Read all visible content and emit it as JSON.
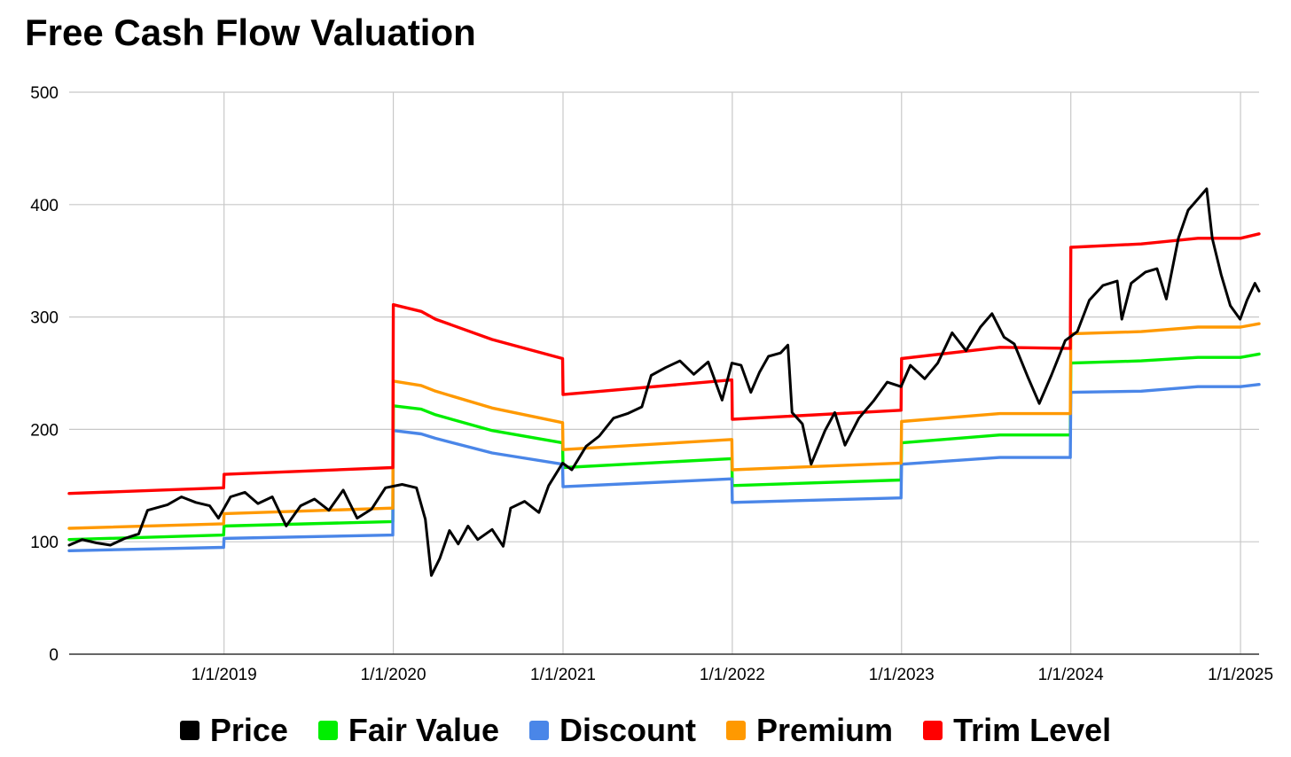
{
  "chart_data": {
    "type": "line",
    "title": "Free Cash Flow Valuation",
    "xlabel": "",
    "ylabel": "",
    "ylim": [
      0,
      500
    ],
    "y_ticks": [
      0,
      100,
      200,
      300,
      400,
      500
    ],
    "xlim": [
      "2018-02-01",
      "2025-02-10"
    ],
    "x_ticks": [
      "2019-01-01",
      "2020-01-01",
      "2021-01-01",
      "2022-01-01",
      "2023-01-01",
      "2024-01-01",
      "2025-01-01"
    ],
    "x_tick_labels": [
      "1/1/2019",
      "1/1/2020",
      "1/1/2021",
      "1/1/2022",
      "1/1/2023",
      "1/1/2024",
      "1/1/2025"
    ],
    "grid": true,
    "legend_position": "bottom",
    "series": [
      {
        "name": "Price",
        "color": "#000000",
        "points": [
          [
            "2018-02-01",
            97
          ],
          [
            "2018-03-01",
            102
          ],
          [
            "2018-04-01",
            99
          ],
          [
            "2018-05-01",
            97
          ],
          [
            "2018-06-01",
            103
          ],
          [
            "2018-07-01",
            107
          ],
          [
            "2018-07-20",
            128
          ],
          [
            "2018-09-01",
            133
          ],
          [
            "2018-10-01",
            140
          ],
          [
            "2018-11-01",
            135
          ],
          [
            "2018-12-01",
            132
          ],
          [
            "2018-12-20",
            121
          ],
          [
            "2019-01-15",
            140
          ],
          [
            "2019-02-15",
            144
          ],
          [
            "2019-03-15",
            134
          ],
          [
            "2019-04-15",
            140
          ],
          [
            "2019-05-15",
            114
          ],
          [
            "2019-06-15",
            132
          ],
          [
            "2019-07-15",
            138
          ],
          [
            "2019-08-15",
            128
          ],
          [
            "2019-09-15",
            146
          ],
          [
            "2019-10-15",
            121
          ],
          [
            "2019-11-15",
            129
          ],
          [
            "2019-12-15",
            148
          ],
          [
            "2020-01-20",
            151
          ],
          [
            "2020-02-20",
            148
          ],
          [
            "2020-03-10",
            120
          ],
          [
            "2020-03-23",
            70
          ],
          [
            "2020-04-10",
            85
          ],
          [
            "2020-05-01",
            110
          ],
          [
            "2020-05-20",
            98
          ],
          [
            "2020-06-10",
            114
          ],
          [
            "2020-07-01",
            102
          ],
          [
            "2020-08-01",
            111
          ],
          [
            "2020-08-25",
            96
          ],
          [
            "2020-09-10",
            130
          ],
          [
            "2020-10-10",
            136
          ],
          [
            "2020-11-10",
            126
          ],
          [
            "2020-12-01",
            150
          ],
          [
            "2020-12-31",
            170
          ],
          [
            "2021-01-20",
            164
          ],
          [
            "2021-02-20",
            185
          ],
          [
            "2021-03-20",
            194
          ],
          [
            "2021-04-20",
            210
          ],
          [
            "2021-05-20",
            214
          ],
          [
            "2021-06-20",
            220
          ],
          [
            "2021-07-10",
            248
          ],
          [
            "2021-08-10",
            255
          ],
          [
            "2021-09-10",
            261
          ],
          [
            "2021-10-10",
            249
          ],
          [
            "2021-11-10",
            260
          ],
          [
            "2021-12-10",
            226
          ],
          [
            "2021-12-31",
            259
          ],
          [
            "2022-01-20",
            257
          ],
          [
            "2022-02-10",
            233
          ],
          [
            "2022-03-01",
            251
          ],
          [
            "2022-03-20",
            265
          ],
          [
            "2022-04-15",
            268
          ],
          [
            "2022-05-01",
            275
          ],
          [
            "2022-05-10",
            215
          ],
          [
            "2022-06-01",
            205
          ],
          [
            "2022-06-20",
            169
          ],
          [
            "2022-07-20",
            199
          ],
          [
            "2022-08-10",
            215
          ],
          [
            "2022-09-01",
            186
          ],
          [
            "2022-10-01",
            210
          ],
          [
            "2022-11-01",
            225
          ],
          [
            "2022-12-01",
            242
          ],
          [
            "2022-12-31",
            238
          ],
          [
            "2023-01-20",
            257
          ],
          [
            "2023-02-20",
            245
          ],
          [
            "2023-03-20",
            259
          ],
          [
            "2023-04-20",
            286
          ],
          [
            "2023-05-20",
            270
          ],
          [
            "2023-06-20",
            291
          ],
          [
            "2023-07-15",
            303
          ],
          [
            "2023-08-10",
            282
          ],
          [
            "2023-09-01",
            276
          ],
          [
            "2023-10-01",
            246
          ],
          [
            "2023-10-25",
            223
          ],
          [
            "2023-11-20",
            248
          ],
          [
            "2023-12-20",
            279
          ],
          [
            "2024-01-15",
            287
          ],
          [
            "2024-02-10",
            315
          ],
          [
            "2024-03-10",
            328
          ],
          [
            "2024-04-10",
            332
          ],
          [
            "2024-04-20",
            298
          ],
          [
            "2024-05-10",
            330
          ],
          [
            "2024-06-10",
            340
          ],
          [
            "2024-07-05",
            343
          ],
          [
            "2024-07-25",
            316
          ],
          [
            "2024-08-20",
            370
          ],
          [
            "2024-09-10",
            395
          ],
          [
            "2024-10-01",
            405
          ],
          [
            "2024-10-20",
            414
          ],
          [
            "2024-11-01",
            370
          ],
          [
            "2024-11-20",
            338
          ],
          [
            "2024-12-10",
            310
          ],
          [
            "2024-12-31",
            298
          ],
          [
            "2025-01-15",
            315
          ],
          [
            "2025-02-01",
            330
          ],
          [
            "2025-02-10",
            323
          ]
        ]
      },
      {
        "name": "Fair Value",
        "color": "#00ee00",
        "points": [
          [
            "2018-02-01",
            102
          ],
          [
            "2018-12-31",
            106
          ],
          [
            "2019-01-01",
            114
          ],
          [
            "2019-12-31",
            118
          ],
          [
            "2020-01-01",
            221
          ],
          [
            "2020-03-01",
            218
          ],
          [
            "2020-04-01",
            213
          ],
          [
            "2020-08-01",
            199
          ],
          [
            "2020-12-31",
            188
          ],
          [
            "2021-01-01",
            166
          ],
          [
            "2021-12-31",
            174
          ],
          [
            "2022-01-01",
            150
          ],
          [
            "2022-12-31",
            155
          ],
          [
            "2023-01-01",
            188
          ],
          [
            "2023-08-01",
            195
          ],
          [
            "2023-12-31",
            195
          ],
          [
            "2024-01-01",
            259
          ],
          [
            "2024-06-01",
            261
          ],
          [
            "2024-10-01",
            264
          ],
          [
            "2025-01-01",
            264
          ],
          [
            "2025-02-10",
            267
          ]
        ]
      },
      {
        "name": "Discount",
        "color": "#4a86e8",
        "points": [
          [
            "2018-02-01",
            92
          ],
          [
            "2018-12-31",
            95
          ],
          [
            "2019-01-01",
            103
          ],
          [
            "2019-12-31",
            106
          ],
          [
            "2020-01-01",
            199
          ],
          [
            "2020-03-01",
            196
          ],
          [
            "2020-04-01",
            192
          ],
          [
            "2020-08-01",
            179
          ],
          [
            "2020-12-31",
            169
          ],
          [
            "2021-01-01",
            149
          ],
          [
            "2021-12-31",
            156
          ],
          [
            "2022-01-01",
            135
          ],
          [
            "2022-12-31",
            139
          ],
          [
            "2023-01-01",
            169
          ],
          [
            "2023-08-01",
            175
          ],
          [
            "2023-12-31",
            175
          ],
          [
            "2024-01-01",
            233
          ],
          [
            "2024-06-01",
            234
          ],
          [
            "2024-10-01",
            238
          ],
          [
            "2025-01-01",
            238
          ],
          [
            "2025-02-10",
            240
          ]
        ]
      },
      {
        "name": "Premium",
        "color": "#ff9900",
        "points": [
          [
            "2018-02-01",
            112
          ],
          [
            "2018-12-31",
            116
          ],
          [
            "2019-01-01",
            125
          ],
          [
            "2019-12-31",
            130
          ],
          [
            "2020-01-01",
            243
          ],
          [
            "2020-03-01",
            239
          ],
          [
            "2020-04-01",
            234
          ],
          [
            "2020-08-01",
            219
          ],
          [
            "2020-12-31",
            206
          ],
          [
            "2021-01-01",
            182
          ],
          [
            "2021-12-31",
            191
          ],
          [
            "2022-01-01",
            164
          ],
          [
            "2022-12-31",
            170
          ],
          [
            "2023-01-01",
            207
          ],
          [
            "2023-08-01",
            214
          ],
          [
            "2023-12-31",
            214
          ],
          [
            "2024-01-01",
            285
          ],
          [
            "2024-06-01",
            287
          ],
          [
            "2024-10-01",
            291
          ],
          [
            "2025-01-01",
            291
          ],
          [
            "2025-02-10",
            294
          ]
        ]
      },
      {
        "name": "Trim Level",
        "color": "#ff0000",
        "points": [
          [
            "2018-02-01",
            143
          ],
          [
            "2018-12-31",
            148
          ],
          [
            "2019-01-01",
            160
          ],
          [
            "2019-12-31",
            166
          ],
          [
            "2020-01-01",
            311
          ],
          [
            "2020-03-01",
            305
          ],
          [
            "2020-04-01",
            298
          ],
          [
            "2020-08-01",
            280
          ],
          [
            "2020-12-31",
            263
          ],
          [
            "2021-01-01",
            231
          ],
          [
            "2021-12-31",
            244
          ],
          [
            "2022-01-01",
            209
          ],
          [
            "2022-12-31",
            217
          ],
          [
            "2023-01-01",
            263
          ],
          [
            "2023-08-01",
            273
          ],
          [
            "2023-12-31",
            272
          ],
          [
            "2024-01-01",
            362
          ],
          [
            "2024-06-01",
            365
          ],
          [
            "2024-10-01",
            370
          ],
          [
            "2025-01-01",
            370
          ],
          [
            "2025-02-10",
            374
          ]
        ]
      }
    ]
  }
}
